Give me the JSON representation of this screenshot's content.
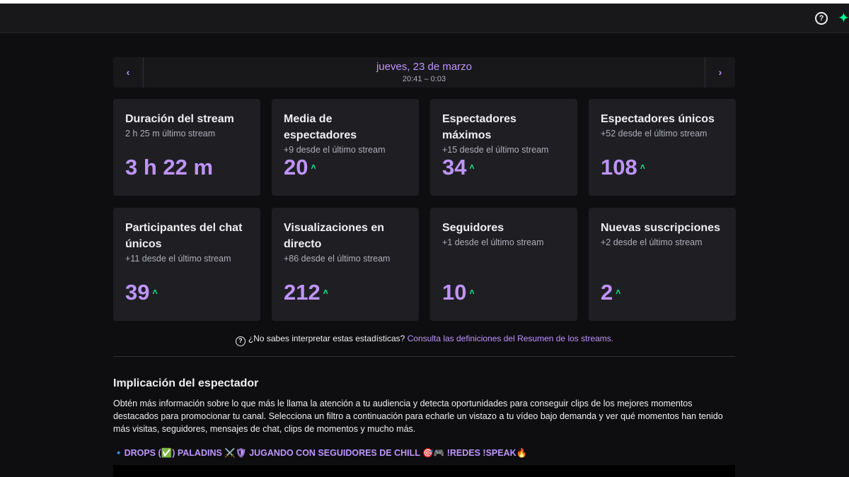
{
  "header": {
    "help_icon": "question-circle-icon",
    "spark_icon": "sparkle-icon",
    "help_glyph": "?",
    "spark_glyph": "✦"
  },
  "date_nav": {
    "prev_glyph": "‹",
    "next_glyph": "›",
    "date": "jueves, 23 de marzo",
    "time_range": "20:41 – 0:03"
  },
  "stats": [
    {
      "title": "Duración del stream",
      "sub": "2 h 25 m último stream",
      "value": "3 h 22 m",
      "arrow": ""
    },
    {
      "title": "Media de espectadores",
      "sub": "+9 desde el último stream",
      "value": "20",
      "arrow": "˄"
    },
    {
      "title": "Espectadores máximos",
      "sub": "+15 desde el último stream",
      "value": "34",
      "arrow": "˄"
    },
    {
      "title": "Espectadores únicos",
      "sub": "+52 desde el último stream",
      "value": "108",
      "arrow": "˄"
    },
    {
      "title": "Participantes del chat únicos",
      "sub": "+11 desde el último stream",
      "value": "39",
      "arrow": "˄"
    },
    {
      "title": "Visualizaciones en directo",
      "sub": "+86 desde el último stream",
      "value": "212",
      "arrow": "˄"
    },
    {
      "title": "Seguidores",
      "sub": "+1 desde el último stream",
      "value": "10",
      "arrow": "˄"
    },
    {
      "title": "Nuevas suscripciones",
      "sub": "+2 desde el último stream",
      "value": "2",
      "arrow": "˄"
    }
  ],
  "help_note": {
    "text": "¿No sabes interpretar estas estadísticas?",
    "link": "Consulta las definiciones del Resumen de los streams."
  },
  "engagement": {
    "title": "Implicación del espectador",
    "description": "Obtén más información sobre lo que más le llama la atención a tu audiencia y detecta oportunidades para conseguir clips de los mejores momentos destacados para promocionar tu canal. Selecciona un filtro a continuación para echarle un vistazo a tu vídeo bajo demanda y ver qué momentos han tenido más visitas, seguidores, mensajes de chat, clips de momentos y mucho más.",
    "stream_title": "🔹DROPS (✅) PALADINS ⚔️🛡 JUGANDO CON SEGUIDORES DE CHILL 🎯🎮 !REDES !SPEAK🔥"
  }
}
